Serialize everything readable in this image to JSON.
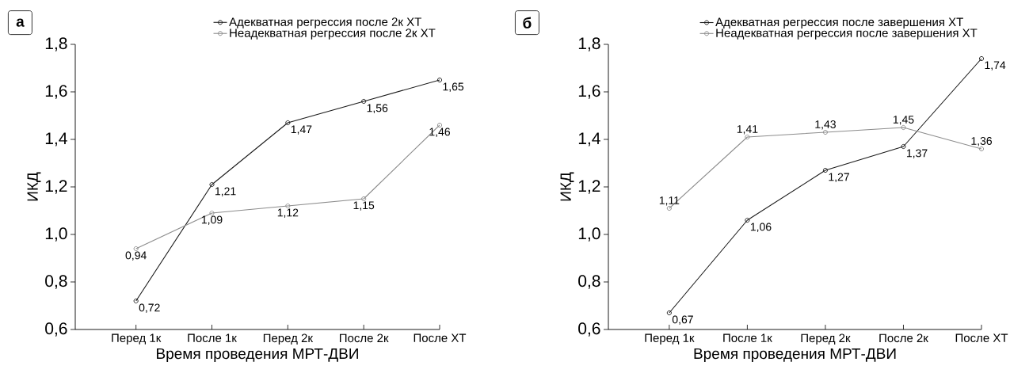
{
  "chart_data": [
    {
      "type": "line",
      "title": "а",
      "xlabel": "Время проведения МРТ-ДВИ",
      "ylabel": "ИКД",
      "categories": [
        "Перед 1к",
        "После 1к",
        "Перед 2к",
        "После 2к",
        "После ХТ"
      ],
      "series": [
        {
          "name": "Адекватная регрессия после 2к ХТ",
          "color": "#1a1a1a",
          "values": [
            0.72,
            1.21,
            1.47,
            1.56,
            1.65
          ],
          "value_labels": [
            "0,72",
            "1,21",
            "1,47",
            "1,56",
            "1,65"
          ]
        },
        {
          "name": "Неадекватная регрессия после 2к ХТ",
          "color": "#8c8c8c",
          "values": [
            0.94,
            1.09,
            1.12,
            1.15,
            1.46
          ],
          "value_labels": [
            "0,94",
            "1,09",
            "1,12",
            "1,15",
            "1,46"
          ]
        }
      ],
      "ylim": [
        0.6,
        1.8
      ],
      "yticks": [
        {
          "value": 0.6,
          "label": "0,6"
        },
        {
          "value": 0.8,
          "label": "0,8"
        },
        {
          "value": 1.0,
          "label": "1,0"
        },
        {
          "value": 1.2,
          "label": "1,2"
        },
        {
          "value": 1.4,
          "label": "1,4"
        },
        {
          "value": 1.6,
          "label": "1,6"
        },
        {
          "value": 1.8,
          "label": "1,8"
        }
      ],
      "legend": "top right",
      "marker": "circle"
    },
    {
      "type": "line",
      "title": "б",
      "xlabel": "Время проведения МРТ-ДВИ",
      "ylabel": "ИКД",
      "categories": [
        "Перед 1к",
        "После 1к",
        "Перед 2к",
        "После 2к",
        "После ХТ"
      ],
      "series": [
        {
          "name": "Адекватная регрессия после завершения ХТ",
          "color": "#1a1a1a",
          "values": [
            0.67,
            1.06,
            1.27,
            1.37,
            1.74
          ],
          "value_labels": [
            "0,67",
            "1,06",
            "1,27",
            "1,37",
            "1,74"
          ]
        },
        {
          "name": "Неадекватная регрессия после завершения ХТ",
          "color": "#8c8c8c",
          "values": [
            1.11,
            1.41,
            1.43,
            1.45,
            1.36
          ],
          "value_labels": [
            "1,11",
            "1,41",
            "1,43",
            "1,45",
            "1,36"
          ]
        }
      ],
      "ylim": [
        0.6,
        1.8
      ],
      "yticks": [
        {
          "value": 0.6,
          "label": "0,6"
        },
        {
          "value": 0.8,
          "label": "0,8"
        },
        {
          "value": 1.0,
          "label": "1,0"
        },
        {
          "value": 1.2,
          "label": "1,2"
        },
        {
          "value": 1.4,
          "label": "1,4"
        },
        {
          "value": 1.6,
          "label": "1,6"
        },
        {
          "value": 1.8,
          "label": "1,8"
        }
      ],
      "legend": "top right",
      "marker": "circle"
    }
  ]
}
